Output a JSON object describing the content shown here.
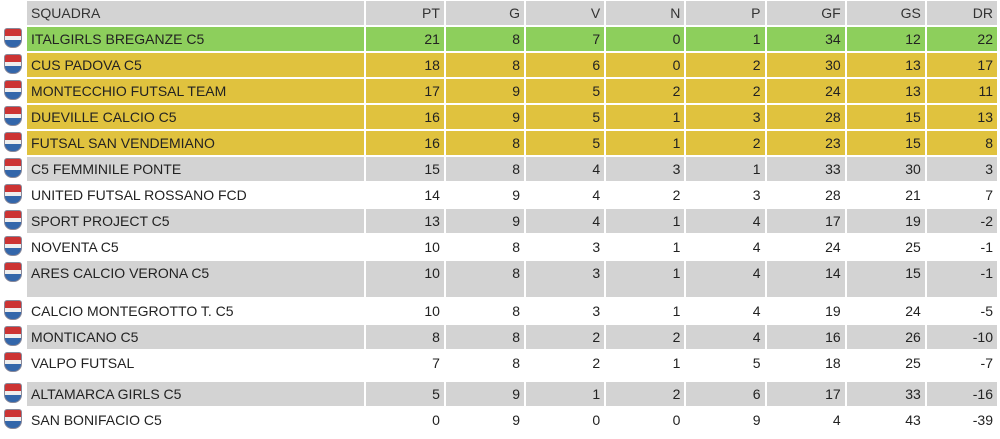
{
  "table": {
    "header": [
      "SQUADRA",
      "PT",
      "G",
      "V",
      "N",
      "P",
      "GF",
      "GS",
      "DR"
    ],
    "rows": [
      [
        "ITALGIRLS BREGANZE C5",
        21,
        8,
        7,
        0,
        1,
        34,
        12,
        22
      ],
      [
        "CUS PADOVA C5",
        18,
        8,
        6,
        0,
        2,
        30,
        13,
        17
      ],
      [
        "MONTECCHIO FUTSAL TEAM",
        17,
        9,
        5,
        2,
        2,
        24,
        13,
        11
      ],
      [
        "DUEVILLE CALCIO C5",
        16,
        9,
        5,
        1,
        3,
        28,
        15,
        13
      ],
      [
        "FUTSAL SAN VENDEMIANO",
        16,
        8,
        5,
        1,
        2,
        23,
        15,
        8
      ],
      [
        "C5 FEMMINILE PONTE",
        15,
        8,
        4,
        3,
        1,
        33,
        30,
        3
      ],
      [
        "UNITED FUTSAL ROSSANO FCD",
        14,
        9,
        4,
        2,
        3,
        28,
        21,
        7
      ],
      [
        "SPORT PROJECT C5",
        13,
        9,
        4,
        1,
        4,
        17,
        19,
        -2
      ],
      [
        "NOVENTA C5",
        10,
        8,
        3,
        1,
        4,
        24,
        25,
        -1
      ],
      [
        "ARES CALCIO VERONA C5",
        10,
        8,
        3,
        1,
        4,
        14,
        15,
        -1
      ],
      [
        "CALCIO MONTEGROTTO T. C5",
        10,
        8,
        3,
        1,
        4,
        19,
        24,
        -5
      ],
      [
        "MONTICANO C5",
        8,
        8,
        2,
        2,
        4,
        16,
        26,
        -10
      ],
      [
        "VALPO FUTSAL",
        7,
        8,
        2,
        1,
        5,
        18,
        25,
        -7
      ],
      [
        "ALTAMARCA GIRLS C5",
        5,
        9,
        1,
        2,
        6,
        17,
        33,
        -16
      ],
      [
        "SAN BONIFACIO C5",
        0,
        9,
        0,
        0,
        9,
        4,
        43,
        -39
      ]
    ]
  }
}
